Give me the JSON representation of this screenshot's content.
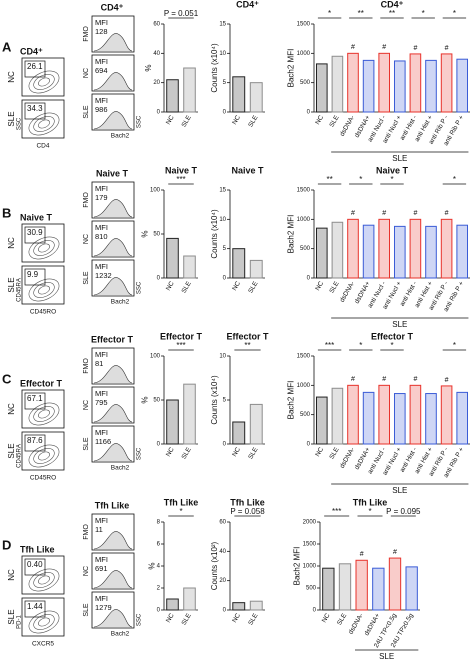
{
  "panels": [
    {
      "letter": "A",
      "gate": {
        "title": "CD4⁺",
        "rows": [
          "NC",
          "SLE"
        ],
        "percents": [
          "26.1",
          "34.3"
        ],
        "y_axis": "SSC",
        "x_axis": "CD4"
      },
      "hist": {
        "title": "CD4⁺",
        "rows": [
          "FMO",
          "NC",
          "SLE"
        ],
        "mfi_label": "MFI",
        "mfi_values": [
          128,
          694,
          986
        ],
        "y_axis": "SSC",
        "x_axis": "Bach2"
      },
      "charts": [
        {
          "type": "bar",
          "ylabel": "%",
          "categories": [
            "NC",
            "SLE"
          ],
          "values": [
            22,
            30
          ],
          "colors": [
            "#222222",
            "#8c8c8c"
          ],
          "ylim": [
            0,
            60
          ],
          "yticks": [
            0,
            20,
            40,
            60
          ],
          "annotations": [
            "P = 0.051"
          ]
        },
        {
          "type": "bar",
          "title": "CD4⁺",
          "ylabel": "Counts (x10⁴)",
          "categories": [
            "NC",
            "SLE"
          ],
          "values": [
            6,
            5
          ],
          "colors": [
            "#222222",
            "#8c8c8c"
          ],
          "ylim": [
            0,
            15
          ],
          "yticks": [
            0,
            5,
            10,
            15
          ]
        },
        {
          "type": "bar",
          "title": "CD4⁺",
          "ylabel": "Bach2 MFI",
          "categories": [
            "NC",
            "SLE",
            "dsDNA-",
            "dsDNA+",
            "anti Nucl -",
            "anti Nucl +",
            "anti Hist -",
            "anti Hist +",
            "anti Rib P -",
            "anti Rib P +"
          ],
          "values": [
            820,
            950,
            1000,
            880,
            1000,
            870,
            990,
            880,
            990,
            900
          ],
          "colors": [
            "#222222",
            "#8c8c8c",
            "#e8322b",
            "#3a5bd6",
            "#e8322b",
            "#3a5bd6",
            "#e8322b",
            "#3a5bd6",
            "#e8322b",
            "#3a5bd6"
          ],
          "ylim": [
            0,
            1500
          ],
          "yticks": [
            0,
            500,
            1000,
            1500
          ],
          "annotations": [
            "*",
            "**",
            "**",
            "*",
            "*"
          ],
          "bar_marks": [
            null,
            null,
            "#",
            null,
            "#",
            null,
            "#",
            null,
            "#",
            null
          ],
          "group_label": "SLE"
        }
      ]
    },
    {
      "letter": "B",
      "gate": {
        "title": "Naive T",
        "rows": [
          "NC",
          "SLE"
        ],
        "percents": [
          "30.9",
          "9.9"
        ],
        "y_axis": "CD45RA",
        "x_axis": "CD45RO"
      },
      "hist": {
        "title": "Naive T",
        "rows": [
          "FMO",
          "NC",
          "SLE"
        ],
        "mfi_label": "MFI",
        "mfi_values": [
          179,
          810,
          1232
        ],
        "y_axis": "SSC",
        "x_axis": "Bach2"
      },
      "charts": [
        {
          "type": "bar",
          "title": "Naive T",
          "ylabel": "%",
          "categories": [
            "NC",
            "SLE"
          ],
          "values": [
            45,
            25
          ],
          "colors": [
            "#222222",
            "#8c8c8c"
          ],
          "ylim": [
            0,
            100
          ],
          "yticks": [
            0,
            50,
            100
          ],
          "annotations": [
            "***"
          ]
        },
        {
          "type": "bar",
          "title": "Naive T",
          "ylabel": "Counts (x10⁴)",
          "categories": [
            "NC",
            "SLE"
          ],
          "values": [
            5,
            3
          ],
          "colors": [
            "#222222",
            "#8c8c8c"
          ],
          "ylim": [
            0,
            15
          ],
          "yticks": [
            0,
            5,
            10,
            15
          ]
        },
        {
          "type": "bar",
          "title": "Naive T",
          "ylabel": "Bach2 MFI",
          "categories": [
            "NC",
            "SLE",
            "dsDNA-",
            "dsDNA+",
            "anti Nucl -",
            "anti Nucl +",
            "anti Hist -",
            "anti Hist +",
            "anti Rib P -",
            "anti Rib P +"
          ],
          "values": [
            850,
            950,
            1000,
            900,
            1000,
            880,
            1000,
            880,
            1000,
            900
          ],
          "colors": [
            "#222222",
            "#8c8c8c",
            "#e8322b",
            "#3a5bd6",
            "#e8322b",
            "#3a5bd6",
            "#e8322b",
            "#3a5bd6",
            "#e8322b",
            "#3a5bd6"
          ],
          "ylim": [
            0,
            1500
          ],
          "yticks": [
            0,
            500,
            1000,
            1500
          ],
          "annotations": [
            "**",
            "*",
            "*",
            "*"
          ],
          "bar_marks": [
            null,
            null,
            "#",
            null,
            "#",
            null,
            "#",
            null,
            "#",
            null
          ],
          "group_label": "SLE"
        }
      ]
    },
    {
      "letter": "C",
      "gate": {
        "title": "Effector T",
        "rows": [
          "NC",
          "SLE"
        ],
        "percents": [
          "67.1",
          "87.6"
        ],
        "y_axis": "CD45RA",
        "x_axis": "CD45RO"
      },
      "hist": {
        "title": "Effector T",
        "rows": [
          "FMO",
          "NC",
          "SLE"
        ],
        "mfi_label": "MFI",
        "mfi_values": [
          81,
          795,
          1166
        ],
        "y_axis": "SSC",
        "x_axis": "Bach2"
      },
      "charts": [
        {
          "type": "bar",
          "title": "Effector T",
          "ylabel": "%",
          "categories": [
            "NC",
            "SLE"
          ],
          "values": [
            50,
            68
          ],
          "colors": [
            "#222222",
            "#8c8c8c"
          ],
          "ylim": [
            0,
            100
          ],
          "yticks": [
            0,
            50,
            100
          ],
          "annotations": [
            "***"
          ]
        },
        {
          "type": "bar",
          "title": "Effector T",
          "ylabel": "Counts (x10⁴)",
          "categories": [
            "NC",
            "SLE"
          ],
          "values": [
            2.5,
            4.5
          ],
          "colors": [
            "#222222",
            "#8c8c8c"
          ],
          "ylim": [
            0,
            10
          ],
          "yticks": [
            0,
            5,
            10
          ],
          "annotations": [
            "**"
          ]
        },
        {
          "type": "bar",
          "title": "Effector T",
          "ylabel": "Bach2 MFI",
          "categories": [
            "NC",
            "SLE",
            "dsDNA-",
            "dsDNA+",
            "anti Nucl -",
            "anti Nucl +",
            "anti Hist -",
            "anti Hist +",
            "anti Rib P -",
            "anti Rib P +"
          ],
          "values": [
            800,
            950,
            1000,
            880,
            1000,
            860,
            1000,
            860,
            990,
            880
          ],
          "colors": [
            "#222222",
            "#8c8c8c",
            "#e8322b",
            "#3a5bd6",
            "#e8322b",
            "#3a5bd6",
            "#e8322b",
            "#3a5bd6",
            "#e8322b",
            "#3a5bd6"
          ],
          "ylim": [
            0,
            1500
          ],
          "yticks": [
            0,
            500,
            1000,
            1500
          ],
          "annotations": [
            "***",
            "*",
            "*",
            "*"
          ],
          "bar_marks": [
            null,
            null,
            "#",
            null,
            "#",
            null,
            "#",
            null,
            "#",
            null
          ],
          "group_label": "SLE"
        }
      ]
    },
    {
      "letter": "D",
      "gate": {
        "title": "Tfh Like",
        "rows": [
          "NC",
          "SLE"
        ],
        "percents": [
          "0.40",
          "1.44"
        ],
        "y_axis": "PD-1",
        "x_axis": "CXCR5"
      },
      "hist": {
        "title": "Tfh Like",
        "rows": [
          "FMO",
          "NC",
          "SLE"
        ],
        "mfi_label": "MFI",
        "mfi_values": [
          11,
          691,
          1279
        ],
        "y_axis": "SSC",
        "x_axis": "Bach2"
      },
      "charts": [
        {
          "type": "bar",
          "title": "Tfh Like",
          "ylabel": "%",
          "categories": [
            "NC",
            "SLE"
          ],
          "values": [
            1,
            2
          ],
          "colors": [
            "#222222",
            "#8c8c8c"
          ],
          "ylim": [
            0,
            8
          ],
          "yticks": [
            0,
            2,
            4,
            6,
            8
          ],
          "annotations": [
            "*"
          ]
        },
        {
          "type": "bar",
          "title": "Tfh Like",
          "ylabel": "Counts (x10²)",
          "categories": [
            "NC",
            "SLE"
          ],
          "values": [
            5,
            6
          ],
          "colors": [
            "#222222",
            "#8c8c8c"
          ],
          "ylim": [
            0,
            60
          ],
          "yticks": [
            0,
            20,
            40,
            60
          ],
          "annotations": [
            "P = 0.058"
          ]
        },
        {
          "type": "bar",
          "title": "Tfh Like",
          "ylabel": "Bach2 MFI",
          "categories": [
            "NC",
            "SLE",
            "dsDNA-",
            "dsDNA+",
            "24U TP<0.5g",
            "24U TP≥0.5g"
          ],
          "values": [
            950,
            1050,
            1130,
            950,
            1180,
            980
          ],
          "colors": [
            "#222222",
            "#8c8c8c",
            "#e8322b",
            "#3a5bd6",
            "#e8322b",
            "#3a5bd6"
          ],
          "ylim": [
            0,
            2000
          ],
          "yticks": [
            0,
            500,
            1000,
            1500,
            2000
          ],
          "annotations": [
            "***",
            "*",
            "P = 0.095"
          ],
          "bar_marks": [
            null,
            null,
            "#",
            null,
            "#",
            null
          ],
          "group_label": "SLE"
        }
      ]
    }
  ]
}
